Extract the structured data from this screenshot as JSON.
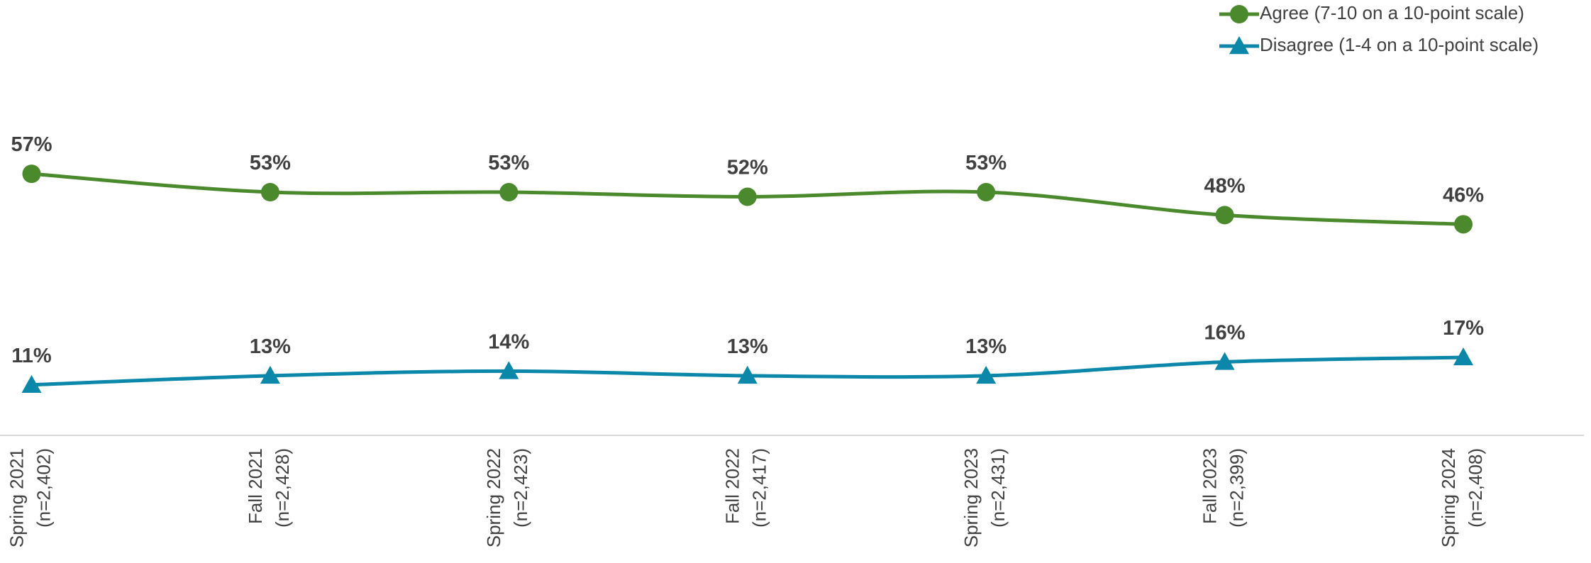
{
  "chart_data": {
    "type": "line",
    "categories": [
      [
        "Spring 2021",
        "(n=2,402)"
      ],
      [
        "Fall 2021",
        "(n=2,428)"
      ],
      [
        "Spring 2022",
        "(n=2,423)"
      ],
      [
        "Fall 2022",
        "(n=2,417)"
      ],
      [
        "Spring 2023",
        "(n=2,431)"
      ],
      [
        "Fall 2023",
        "(n=2,399)"
      ],
      [
        "Spring 2024",
        "(n=2,408)"
      ]
    ],
    "series": [
      {
        "name": "Agree (7-10 on a 10-point scale)",
        "color": "#4a8a2c",
        "marker": "circle",
        "values": [
          57,
          53,
          53,
          52,
          53,
          48,
          46
        ],
        "value_labels": [
          "57%",
          "53%",
          "53%",
          "52%",
          "53%",
          "48%",
          "46%"
        ]
      },
      {
        "name": "Disagree (1-4 on a 10-point scale)",
        "color": "#0b87a9",
        "marker": "triangle",
        "values": [
          11,
          13,
          14,
          13,
          13,
          16,
          17
        ],
        "value_labels": [
          "11%",
          "13%",
          "14%",
          "13%",
          "13%",
          "16%",
          "17%"
        ]
      }
    ],
    "ylim": [
      0,
      70
    ],
    "legend": "top-right",
    "smooth": true
  }
}
